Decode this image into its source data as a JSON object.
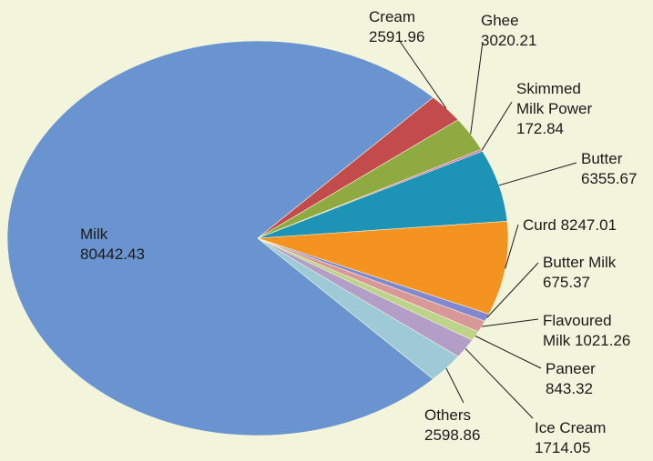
{
  "chart_data": {
    "type": "pie",
    "title": "",
    "slices": [
      {
        "key": "milk",
        "label": "Milk",
        "value": 80442.43,
        "value_text": "80442.43",
        "color": "#6994cf"
      },
      {
        "key": "cream",
        "label": "Cream",
        "value": 2591.96,
        "value_text": "2591.96",
        "color": "#c34b4b"
      },
      {
        "key": "ghee",
        "label": "Ghee",
        "value": 3020.21,
        "value_text": "3020.21",
        "color": "#8eaa40"
      },
      {
        "key": "skimmed_milk_power",
        "label": "Skimmed Milk Power",
        "value": 172.84,
        "value_text": "172.84",
        "color": "#d46bb0"
      },
      {
        "key": "butter",
        "label": "Butter",
        "value": 6355.67,
        "value_text": "6355.67",
        "color": "#1d93b5"
      },
      {
        "key": "curd",
        "label": "Curd",
        "value": 8247.01,
        "value_text": "8247.01",
        "color": "#f4931f"
      },
      {
        "key": "butter_milk",
        "label": "Butter Milk",
        "value": 675.37,
        "value_text": "675.37",
        "color": "#8288cf"
      },
      {
        "key": "flavoured_milk",
        "label": "Flavoured Milk",
        "value": 1021.26,
        "value_text": "1021.26",
        "color": "#d99898"
      },
      {
        "key": "paneer",
        "label": "Paneer",
        "value": 843.32,
        "value_text": "843.32",
        "color": "#bed38a"
      },
      {
        "key": "ice_cream",
        "label": "Ice Cream",
        "value": 1714.05,
        "value_text": "1714.05",
        "color": "#b29ec6"
      },
      {
        "key": "others",
        "label": "Others",
        "value": 2598.86,
        "value_text": "2598.86",
        "color": "#9ecad8"
      }
    ],
    "legend": "none"
  },
  "labels": {
    "milk": [
      "Milk",
      "80442.43"
    ],
    "cream": [
      "Cream",
      "2591.96"
    ],
    "ghee": [
      "Ghee",
      "3020.21"
    ],
    "skimmed_milk_power": [
      "Skimmed",
      "Milk Power",
      "172.84"
    ],
    "butter": [
      "Butter",
      "6355.67"
    ],
    "curd": [
      "Curd 8247.01"
    ],
    "butter_milk": [
      "Butter Milk",
      "675.37"
    ],
    "flavoured_milk": [
      "Flavoured",
      "Milk 1021.26"
    ],
    "paneer": [
      "Paneer",
      "843.32"
    ],
    "ice_cream": [
      "Ice Cream",
      "1714.05"
    ],
    "others": [
      "Others",
      "2598.86"
    ]
  }
}
